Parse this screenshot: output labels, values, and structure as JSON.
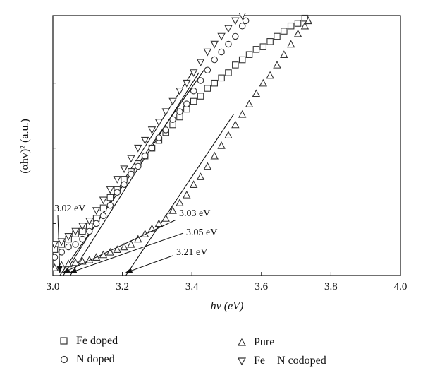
{
  "chart_data": {
    "type": "scatter",
    "title": "",
    "xlabel": "hv (eV)",
    "ylabel": "(αhv)² (a.u.)",
    "xlim": [
      3.0,
      4.0
    ],
    "ylim": [
      0,
      1
    ],
    "xticks": [
      3.0,
      3.2,
      3.4,
      3.6,
      3.8,
      4.0
    ],
    "xtick_labels": [
      "3.0",
      "3.2",
      "3.4",
      "3.6",
      "3.8",
      "4.0"
    ],
    "yticks": [
      0.2,
      0.49,
      0.74
    ],
    "grid": false,
    "legend_position": "bottom",
    "series": [
      {
        "name": "Fe doped",
        "marker": "square",
        "x": [
          3.005,
          3.025,
          3.045,
          3.065,
          3.085,
          3.105,
          3.125,
          3.145,
          3.165,
          3.185,
          3.205,
          3.225,
          3.245,
          3.265,
          3.285,
          3.305,
          3.325,
          3.345,
          3.365,
          3.385,
          3.405,
          3.425,
          3.445,
          3.465,
          3.485,
          3.505,
          3.525,
          3.545,
          3.565,
          3.585,
          3.605,
          3.625,
          3.645,
          3.665,
          3.685,
          3.705,
          3.725
        ],
        "y": [
          0.1,
          0.12,
          0.14,
          0.16,
          0.17,
          0.19,
          0.22,
          0.26,
          0.3,
          0.33,
          0.37,
          0.4,
          0.43,
          0.46,
          0.49,
          0.52,
          0.55,
          0.58,
          0.61,
          0.64,
          0.67,
          0.69,
          0.72,
          0.74,
          0.76,
          0.78,
          0.81,
          0.83,
          0.85,
          0.87,
          0.88,
          0.9,
          0.92,
          0.94,
          0.96,
          0.97,
          0.99
        ]
      },
      {
        "name": "N doped",
        "marker": "circle",
        "x": [
          3.005,
          3.025,
          3.045,
          3.065,
          3.085,
          3.105,
          3.125,
          3.145,
          3.165,
          3.185,
          3.205,
          3.225,
          3.245,
          3.265,
          3.285,
          3.305,
          3.325,
          3.345,
          3.365,
          3.385,
          3.405,
          3.425,
          3.445,
          3.465,
          3.485,
          3.505,
          3.525,
          3.545,
          3.555
        ],
        "y": [
          0.07,
          0.09,
          0.11,
          0.12,
          0.14,
          0.17,
          0.2,
          0.23,
          0.27,
          0.32,
          0.35,
          0.39,
          0.42,
          0.46,
          0.49,
          0.53,
          0.56,
          0.6,
          0.63,
          0.66,
          0.71,
          0.75,
          0.79,
          0.83,
          0.86,
          0.89,
          0.92,
          0.96,
          0.98
        ]
      },
      {
        "name": "Pure",
        "marker": "triangle-up",
        "x": [
          3.005,
          3.025,
          3.045,
          3.065,
          3.085,
          3.105,
          3.125,
          3.145,
          3.165,
          3.185,
          3.205,
          3.225,
          3.245,
          3.265,
          3.285,
          3.305,
          3.325,
          3.345,
          3.365,
          3.385,
          3.405,
          3.425,
          3.445,
          3.465,
          3.485,
          3.505,
          3.525,
          3.545,
          3.565,
          3.585,
          3.605,
          3.625,
          3.645,
          3.665,
          3.685,
          3.705,
          3.725,
          3.735
        ],
        "y": [
          0.03,
          0.04,
          0.045,
          0.05,
          0.055,
          0.06,
          0.07,
          0.08,
          0.09,
          0.1,
          0.11,
          0.12,
          0.14,
          0.16,
          0.18,
          0.2,
          0.22,
          0.25,
          0.28,
          0.31,
          0.35,
          0.38,
          0.42,
          0.46,
          0.5,
          0.54,
          0.58,
          0.62,
          0.66,
          0.7,
          0.74,
          0.77,
          0.81,
          0.85,
          0.89,
          0.93,
          0.96,
          0.98
        ]
      },
      {
        "name": "Fe + N codoped",
        "marker": "triangle-down",
        "x": [
          3.005,
          3.025,
          3.045,
          3.065,
          3.085,
          3.105,
          3.125,
          3.145,
          3.165,
          3.185,
          3.205,
          3.225,
          3.245,
          3.265,
          3.285,
          3.305,
          3.325,
          3.345,
          3.365,
          3.385,
          3.405,
          3.425,
          3.445,
          3.465,
          3.485,
          3.505,
          3.525,
          3.545
        ],
        "y": [
          0.12,
          0.13,
          0.15,
          0.17,
          0.19,
          0.21,
          0.25,
          0.29,
          0.33,
          0.37,
          0.41,
          0.45,
          0.49,
          0.52,
          0.56,
          0.59,
          0.63,
          0.67,
          0.71,
          0.74,
          0.78,
          0.82,
          0.86,
          0.89,
          0.92,
          0.95,
          0.98,
          1.0
        ]
      }
    ],
    "fit_lines": [
      {
        "series": "Fe doped",
        "x": [
          3.02,
          3.44
        ],
        "y": [
          0.0,
          0.8
        ]
      },
      {
        "series": "N doped",
        "x": [
          3.05,
          3.42
        ],
        "y": [
          0.0,
          0.78
        ]
      },
      {
        "series": "Pure",
        "x": [
          3.21,
          3.52
        ],
        "y": [
          0.0,
          0.62
        ]
      },
      {
        "series": "Fe + N codoped",
        "x": [
          3.03,
          3.4
        ],
        "y": [
          0.0,
          0.78
        ]
      }
    ],
    "annotations": [
      {
        "text": "3.02 eV",
        "target_x": 3.02,
        "target_y": 0.0
      },
      {
        "text": "3.03 eV",
        "target_x": 3.03,
        "target_y": 0.0
      },
      {
        "text": "3.05 eV",
        "target_x": 3.05,
        "target_y": 0.0
      },
      {
        "text": "3.21 eV",
        "target_x": 3.21,
        "target_y": 0.0
      }
    ]
  }
}
